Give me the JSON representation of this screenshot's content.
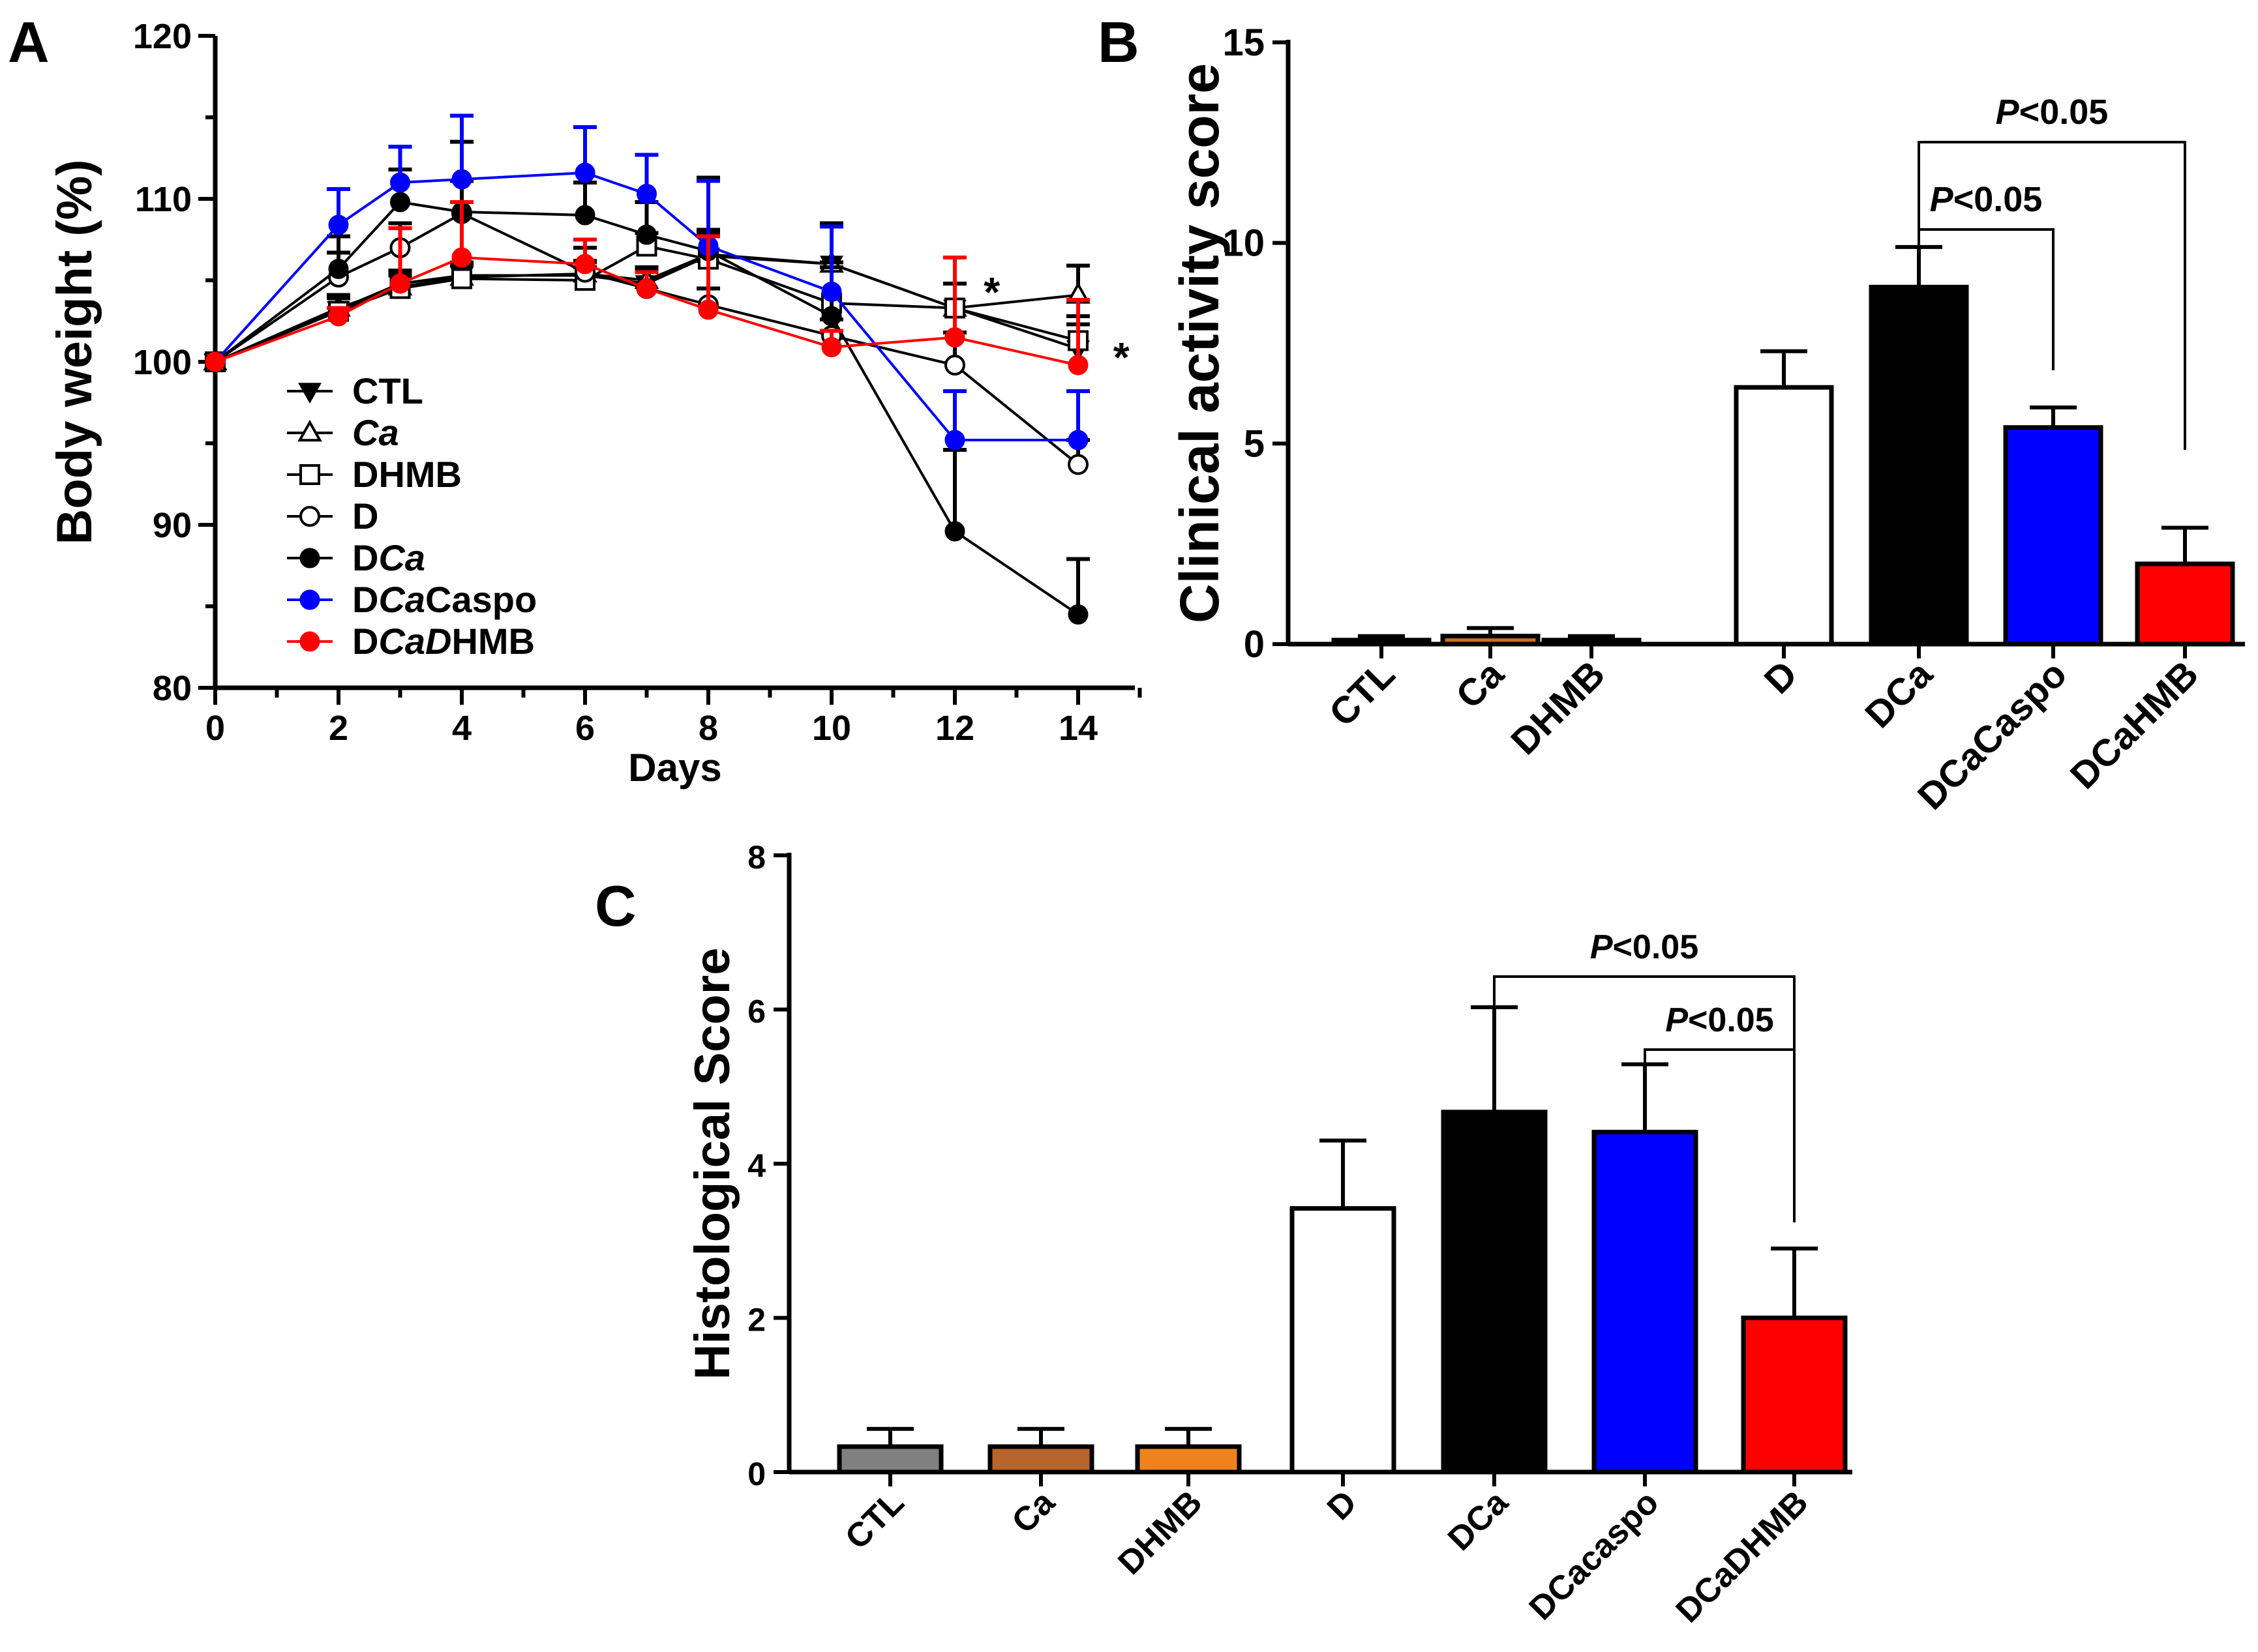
{
  "chart_data": [
    {
      "panel": "A",
      "type": "line",
      "xlabel": "Days",
      "ylabel": "Body weight (%)",
      "xlim": [
        0,
        15
      ],
      "ylim": [
        80,
        120
      ],
      "xticks": [
        "0",
        "2",
        "4",
        "6",
        "8",
        "10",
        "12",
        "14"
      ],
      "yticks": [
        "80",
        "90",
        "100",
        "110",
        "120"
      ],
      "x": [
        0,
        2,
        3,
        4,
        6,
        7,
        8,
        10,
        12,
        14
      ],
      "annotations": [
        {
          "text": "*",
          "x": 12.6,
          "y": 105
        },
        {
          "text": "*",
          "x": 14.7,
          "y": 101
        }
      ],
      "series": [
        {
          "name": "CTL",
          "color": "#000000",
          "marker": "triangle-down",
          "values": [
            100,
            103.2,
            104.8,
            105.3,
            105.3,
            104.8,
            106.5,
            106,
            103.3,
            100.8
          ],
          "errors": [
            0,
            0.8,
            0.8,
            0.8,
            0.8,
            0.8,
            1.5,
            2.5,
            1.5,
            1.5
          ]
        },
        {
          "name": "Ca",
          "color": "#000000",
          "marker": "triangle-open",
          "values": [
            100,
            103.3,
            104.6,
            105.2,
            105.4,
            105,
            106.6,
            106,
            103.3,
            104.1
          ],
          "errors": [
            0,
            0.8,
            0.8,
            0.8,
            0.8,
            0.8,
            1.5,
            2.5,
            1.5,
            1.8
          ]
        },
        {
          "name": "DHMB",
          "color": "#000000",
          "marker": "square-open",
          "values": [
            100,
            103.1,
            104.5,
            105.1,
            105,
            107.1,
            106.3,
            103.6,
            103.3,
            101.3
          ],
          "errors": [
            0,
            0.8,
            0.8,
            0.8,
            0.8,
            0.8,
            1.5,
            2.5,
            1.5,
            1.5
          ]
        },
        {
          "name": "D",
          "color": "#000000",
          "marker": "circle-open",
          "values": [
            100,
            105.2,
            107,
            109.1,
            105.5,
            104.5,
            103.5,
            101.6,
            99.8,
            93.7
          ],
          "errors": [
            0,
            1.5,
            1.5,
            2,
            1.5,
            1,
            1,
            1,
            2,
            1.5
          ]
        },
        {
          "name": "DCa",
          "color": "#000000",
          "marker": "circle-filled",
          "values": [
            100,
            105.7,
            109.8,
            109.2,
            109,
            107.8,
            106.8,
            102.8,
            89.6,
            84.5
          ],
          "errors": [
            0,
            2,
            2,
            4.3,
            2,
            2,
            4.5,
            3,
            5,
            3.4
          ]
        },
        {
          "name": "DCaCaspo",
          "color": "#0000ff",
          "marker": "circle-filled",
          "values": [
            100,
            108.4,
            111,
            111.2,
            111.6,
            110.3,
            107.1,
            104.3,
            95.2,
            95.2
          ],
          "errors": [
            0,
            2.2,
            2.2,
            3.9,
            2.8,
            2.4,
            4,
            4,
            3,
            3
          ]
        },
        {
          "name": "DCaDHMB",
          "color": "#ff0000",
          "marker": "circle-filled",
          "values": [
            100,
            102.8,
            104.8,
            106.4,
            106,
            104.5,
            103.2,
            100.9,
            101.5,
            99.8
          ],
          "errors": [
            0,
            0.5,
            3.4,
            3.4,
            1.5,
            1,
            4.5,
            1,
            4.9,
            4
          ]
        }
      ],
      "legend": [
        {
          "label_plain": "CTL"
        },
        {
          "label_plain": "",
          "label_italic": "Ca"
        },
        {
          "label_plain": "DHMB"
        },
        {
          "label_plain": "D"
        },
        {
          "label_plain": "D",
          "label_italic": "Ca"
        },
        {
          "label_plain": "D",
          "label_italic": "Ca",
          "label_suffix": "Caspo"
        },
        {
          "label_plain": "D",
          "label_italic": "CaD",
          "label_suffix": "HMB"
        }
      ]
    },
    {
      "panel": "B",
      "type": "bar",
      "ylabel": "Clinical activity score",
      "ylim": [
        0,
        15
      ],
      "yticks": [
        "0",
        "5",
        "10",
        "15"
      ],
      "categories": [
        "CTL",
        "Ca",
        "DHMB",
        "D",
        "DCa",
        "DCaCaspo",
        "DCaHMB"
      ],
      "values": [
        0.1,
        0.2,
        0.1,
        6.4,
        8.9,
        5.4,
        2.0
      ],
      "errors": [
        0.1,
        0.2,
        0.1,
        0.9,
        1.0,
        0.5,
        0.9
      ],
      "colors": [
        "#cccccc",
        "#c8701e",
        "#888888",
        "#ffffff",
        "#000000",
        "#0000ff",
        "#ff0000"
      ],
      "significance": [
        {
          "p_italic": "P",
          "p_rest": "<0.05",
          "from": "DCa",
          "to": "DCaCaspo"
        },
        {
          "p_italic": "P",
          "p_rest": "<0.05",
          "from": "DCa",
          "to": "DCaHMB"
        }
      ]
    },
    {
      "panel": "C",
      "type": "bar",
      "ylabel": "Histological Score",
      "ylim": [
        0,
        8
      ],
      "yticks": [
        "0",
        "2",
        "4",
        "6",
        "8"
      ],
      "categories": [
        "CTL",
        "Ca",
        "DHMB",
        "D",
        "DCa",
        "DCacaspo",
        "DCaDHMB"
      ],
      "values": [
        0.33,
        0.33,
        0.33,
        3.42,
        4.67,
        4.41,
        2.0
      ],
      "errors": [
        0.23,
        0.23,
        0.23,
        0.88,
        1.36,
        0.88,
        0.9
      ],
      "colors": [
        "#808080",
        "#b8642a",
        "#f0821e",
        "#ffffff",
        "#000000",
        "#0000ff",
        "#ff0000"
      ],
      "significance": [
        {
          "p_italic": "P",
          "p_rest": "<0.05",
          "from": "DCa",
          "to": "DCaDHMB"
        },
        {
          "p_italic": "P",
          "p_rest": "<0.05",
          "from": "DCacaspo",
          "to": "DCaDHMB"
        }
      ]
    }
  ],
  "panel_labels": {
    "a": "A",
    "b": "B",
    "c": "C"
  }
}
